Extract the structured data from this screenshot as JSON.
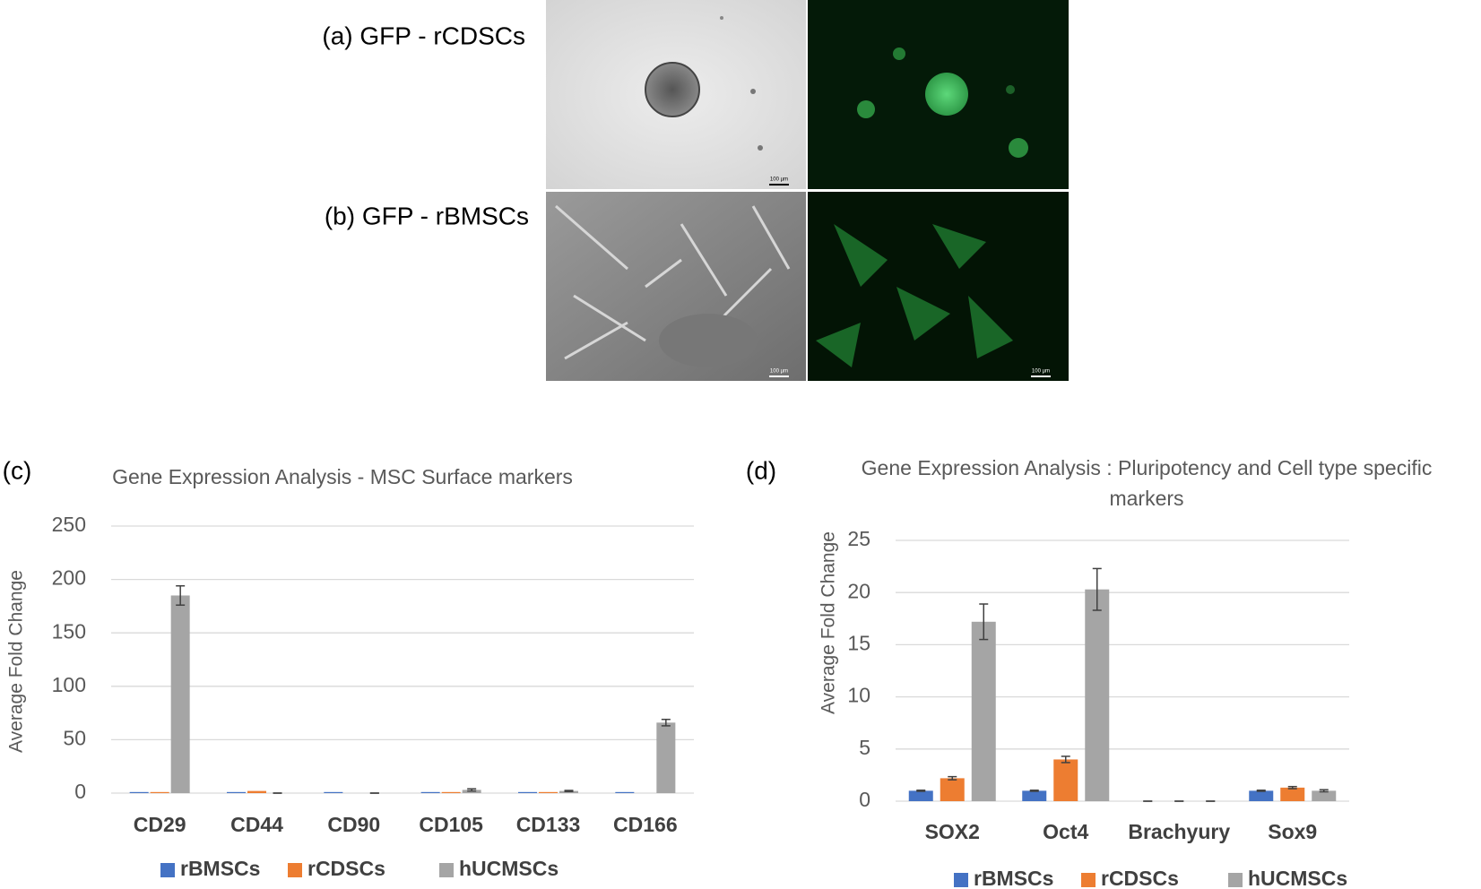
{
  "figure": {
    "panel_a": "(a) GFP - rCDSCs",
    "panel_b": "(b) GFP - rBMSCs",
    "scale_bars": [
      "100 µm",
      "100 µm",
      "100 µm"
    ]
  },
  "chart_data": [
    {
      "type": "bar",
      "panel": "(c)",
      "title": "Gene Expression Analysis - MSC Surface markers",
      "y_label": "Average Fold Change",
      "categories": [
        "CD29",
        "CD44",
        "CD90",
        "CD105",
        "CD133",
        "CD166"
      ],
      "series": [
        {
          "name": "rBMSCs",
          "color": "#4472c4",
          "values": [
            1,
            1,
            1,
            1,
            1,
            1
          ]
        },
        {
          "name": "rCDSCs",
          "color": "#ed7d31",
          "values": [
            1,
            2,
            0,
            1,
            1,
            0
          ]
        },
        {
          "name": "hUCMSCs",
          "color": "#a5a5a5",
          "values": [
            185,
            0,
            0,
            3,
            2,
            66
          ],
          "errors": [
            9,
            0,
            0,
            1,
            0.5,
            3
          ]
        }
      ],
      "ylim": [
        0,
        250
      ],
      "yticks": [
        0,
        50,
        100,
        150,
        200,
        250
      ],
      "grid": true
    },
    {
      "type": "bar",
      "panel": "(d)",
      "title": "Gene Expression Analysis  : Pluripotency and Cell type specific markers",
      "y_label": "Average Fold Change",
      "categories": [
        "SOX2",
        "Oct4",
        "Brachyury",
        "Sox9"
      ],
      "series": [
        {
          "name": "rBMSCs",
          "color": "#4472c4",
          "values": [
            1,
            1,
            0,
            1
          ],
          "errors": [
            0.05,
            0.05,
            0,
            0.05
          ]
        },
        {
          "name": "rCDSCs",
          "color": "#ed7d31",
          "values": [
            2.2,
            4,
            0,
            1.3
          ],
          "errors": [
            0.15,
            0.3,
            0,
            0.1
          ]
        },
        {
          "name": "hUCMSCs",
          "color": "#a5a5a5",
          "values": [
            17.2,
            20.3,
            0,
            1
          ],
          "errors": [
            1.7,
            2,
            0,
            0.1
          ]
        }
      ],
      "ylim": [
        0,
        25
      ],
      "yticks": [
        0,
        5,
        10,
        15,
        20,
        25
      ],
      "grid": true
    }
  ]
}
